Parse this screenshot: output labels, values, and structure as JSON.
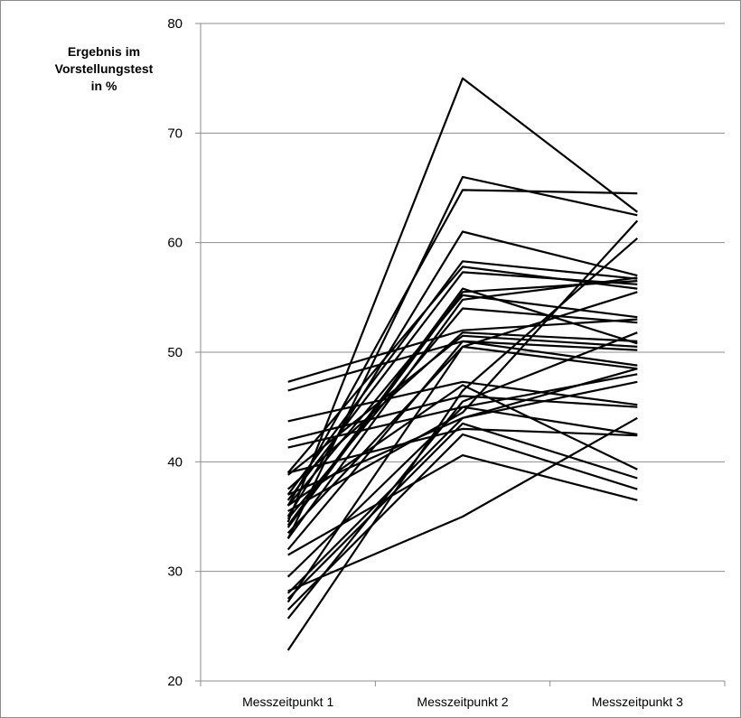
{
  "chart_data": {
    "type": "line",
    "ylabel_lines": [
      "Ergebnis im",
      "Vorstellungstest",
      "in %"
    ],
    "categories": [
      "Messzeitpunkt 1",
      "Messzeitpunkt 2",
      "Messzeitpunkt 3"
    ],
    "ylim": [
      20,
      80
    ],
    "yticks": [
      "20",
      "30",
      "40",
      "50",
      "60",
      "70",
      "80"
    ],
    "grid": true,
    "legend": false,
    "line_color": "#000000",
    "series": [
      {
        "values": [
          34.5,
          75.0,
          62.8
        ]
      },
      {
        "values": [
          33.0,
          66.0,
          62.5
        ]
      },
      {
        "values": [
          36.0,
          64.8,
          64.5
        ]
      },
      {
        "values": [
          35.0,
          61.0,
          57.0
        ]
      },
      {
        "values": [
          37.0,
          58.3,
          56.7
        ]
      },
      {
        "values": [
          39.0,
          57.8,
          55.8
        ]
      },
      {
        "values": [
          36.5,
          57.3,
          56.2
        ]
      },
      {
        "values": [
          34.0,
          55.5,
          56.5
        ]
      },
      {
        "values": [
          36.0,
          55.2,
          53.2
        ]
      },
      {
        "values": [
          33.0,
          54.8,
          56.8
        ]
      },
      {
        "values": [
          34.8,
          54.0,
          52.7
        ]
      },
      {
        "values": [
          47.3,
          52.0,
          53.0
        ]
      },
      {
        "values": [
          37.5,
          51.8,
          51.0
        ]
      },
      {
        "values": [
          38.8,
          51.5,
          50.5
        ]
      },
      {
        "values": [
          32.0,
          51.0,
          50.2
        ]
      },
      {
        "values": [
          33.5,
          50.5,
          48.5
        ]
      },
      {
        "values": [
          43.7,
          47.3,
          45.2
        ]
      },
      {
        "values": [
          42.0,
          46.0,
          45.0
        ]
      },
      {
        "values": [
          41.3,
          45.0,
          42.5
        ]
      },
      {
        "values": [
          39.0,
          43.0,
          42.4
        ]
      },
      {
        "values": [
          37.0,
          44.0,
          48.5
        ]
      },
      {
        "values": [
          29.5,
          45.0,
          48.0
        ]
      },
      {
        "values": [
          28.0,
          44.0,
          47.3
        ]
      },
      {
        "values": [
          27.5,
          43.5,
          38.5
        ]
      },
      {
        "values": [
          26.5,
          42.5,
          37.5
        ]
      },
      {
        "values": [
          31.5,
          40.6,
          36.5
        ]
      },
      {
        "values": [
          28.2,
          35.0,
          44.0
        ]
      },
      {
        "values": [
          25.7,
          45.5,
          51.8
        ]
      },
      {
        "values": [
          22.8,
          46.5,
          60.4
        ]
      },
      {
        "values": [
          46.5,
          51.0,
          48.8
        ]
      },
      {
        "values": [
          36.0,
          47.0,
          39.3
        ]
      },
      {
        "values": [
          35.5,
          44.5,
          62.0
        ]
      },
      {
        "values": [
          34.2,
          55.8,
          50.8
        ]
      },
      {
        "values": [
          27.2,
          50.5,
          55.5
        ]
      }
    ]
  }
}
